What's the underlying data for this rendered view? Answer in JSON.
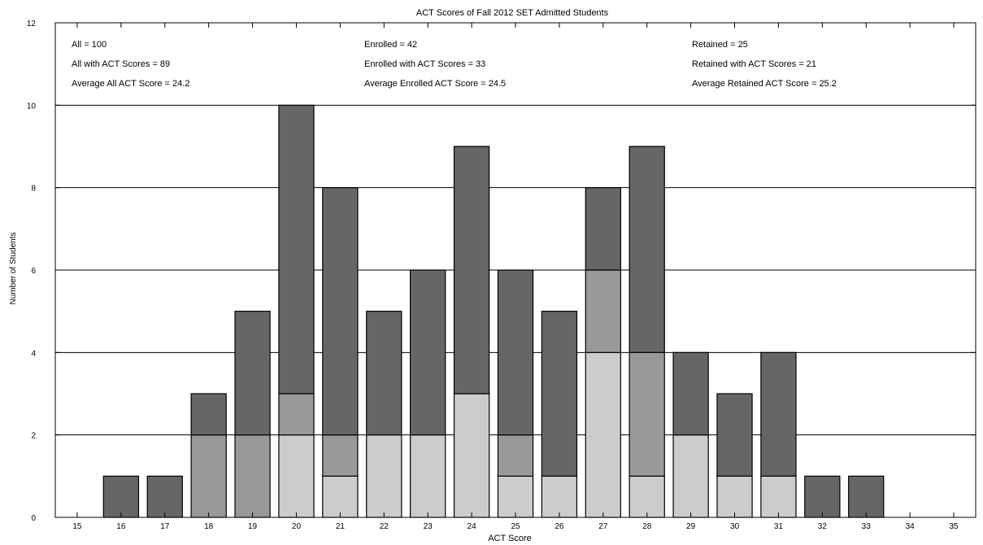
{
  "chart_data": {
    "type": "bar",
    "stacked": true,
    "title": "ACT Scores of Fall 2012 SET Admitted Students",
    "xlabel": "ACT Score",
    "ylabel": "Number of Students",
    "ylim": [
      0,
      12
    ],
    "yticks": [
      "0",
      "2",
      "4",
      "6",
      "8",
      "10",
      "12"
    ],
    "grid": "horizontal",
    "categories": [
      "15",
      "16",
      "17",
      "18",
      "19",
      "20",
      "21",
      "22",
      "23",
      "24",
      "25",
      "26",
      "27",
      "28",
      "29",
      "30",
      "31",
      "32",
      "33",
      "34",
      "35"
    ],
    "totals": [
      0,
      1,
      1,
      3,
      5,
      10,
      8,
      5,
      6,
      9,
      6,
      5,
      8,
      9,
      4,
      3,
      4,
      1,
      1,
      0,
      0
    ],
    "enrolled": [
      0,
      0,
      0,
      2,
      2,
      3,
      2,
      2,
      2,
      3,
      2,
      1,
      6,
      4,
      2,
      1,
      1,
      0,
      0,
      0,
      0
    ],
    "retained": [
      0,
      0,
      0,
      0,
      0,
      2,
      1,
      2,
      2,
      3,
      1,
      1,
      4,
      1,
      2,
      1,
      1,
      0,
      0,
      0,
      0
    ],
    "colors": {
      "all": "#666666",
      "enrolled": "#999999",
      "retained": "#cccccc",
      "grid": "#000000"
    },
    "annotations": [
      [
        "All = 100",
        "All with ACT Scores = 89",
        "Average All ACT Score = 24.2"
      ],
      [
        "Enrolled = 42",
        "Enrolled with ACT Scores = 33",
        "Average Enrolled ACT Score = 24.5"
      ],
      [
        "Retained = 25",
        "Retained with ACT Scores = 21",
        "Average Retained ACT Score = 25.2"
      ]
    ]
  }
}
